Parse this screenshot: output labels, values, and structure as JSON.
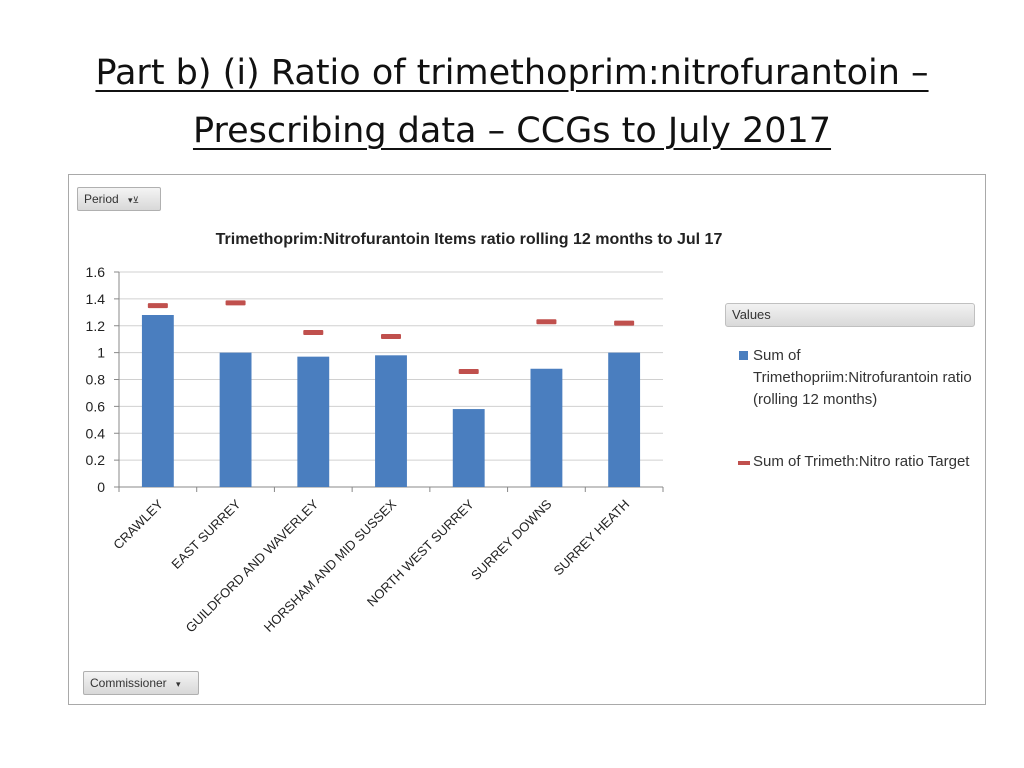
{
  "slide": {
    "title_line1": "Part b) (i) Ratio of trimethoprim:nitrofurantoin –",
    "title_line2": "Prescribing data – CCGs to July 2017"
  },
  "pivot": {
    "period_label": "Period",
    "commissioner_label": "Commissioner",
    "values_label": "Values"
  },
  "legend": {
    "bar_label": "Sum of Trimethopriim:Nitrofurantoin ratio (rolling 12 months)",
    "target_label": "Sum of Trimeth:Nitro ratio Target"
  },
  "colors": {
    "bar": "#4a7ebf",
    "target": "#c0504d",
    "grid": "#d0d0d0"
  },
  "chart_data": {
    "type": "bar",
    "title": "Trimethoprim:Nitrofurantoin  Items ratio rolling 12 months to    Jul 17",
    "categories": [
      "CRAWLEY",
      "EAST SURREY",
      "GUILDFORD AND WAVERLEY",
      "HORSHAM AND MID SUSSEX",
      "NORTH WEST SURREY",
      "SURREY DOWNS",
      "SURREY HEATH"
    ],
    "series": [
      {
        "name": "Sum of Trimethopriim:Nitrofurantoin ratio (rolling 12 months)",
        "type": "bar",
        "values": [
          1.28,
          1.0,
          0.97,
          0.98,
          0.58,
          0.88,
          1.0
        ]
      },
      {
        "name": "Sum of Trimeth:Nitro ratio Target",
        "type": "marker",
        "values": [
          1.35,
          1.37,
          1.15,
          1.12,
          0.86,
          1.23,
          1.22
        ]
      }
    ],
    "ylim": [
      0,
      1.6
    ],
    "yticks": [
      "0",
      "0.2",
      "0.4",
      "0.6",
      "0.8",
      "1",
      "1.2",
      "1.4",
      "1.6"
    ],
    "xlabel": "",
    "ylabel": "",
    "grid": true,
    "legend_position": "right"
  }
}
